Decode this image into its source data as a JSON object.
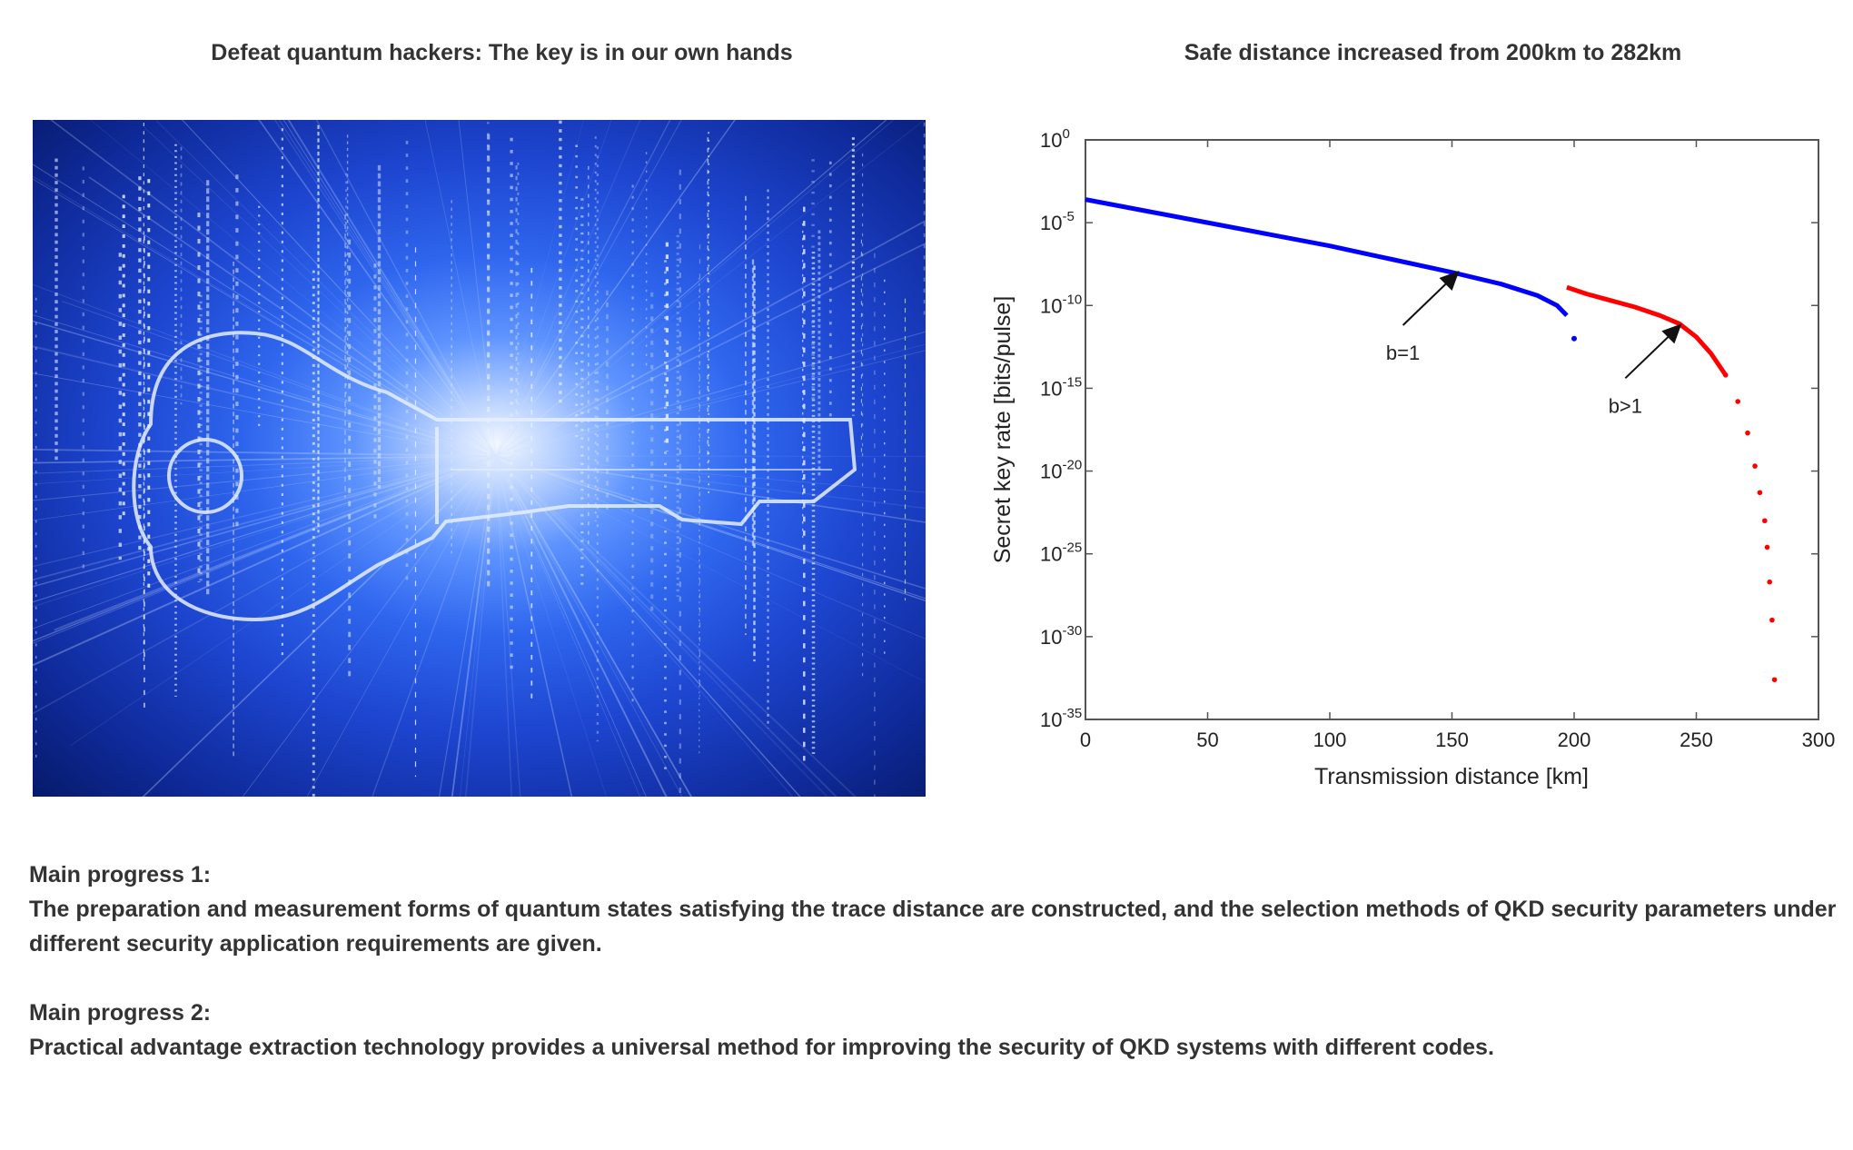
{
  "captions": {
    "left": "Defeat quantum hackers: The key is in our own hands",
    "right": "Safe distance increased from 200km to 282km"
  },
  "image": {
    "icon": "key-icon",
    "colors": {
      "background": "#1d45cf",
      "glow": "#f4f8ff",
      "outline": "#e6efff"
    }
  },
  "chart_data": {
    "type": "line",
    "title": "",
    "xlabel": "Transmission distance [km]",
    "ylabel": "Secret key rate [bits/pulse]",
    "xlim": [
      0,
      300
    ],
    "ylim_exponent": [
      -35,
      0
    ],
    "log_y": true,
    "x_ticks": [
      "0",
      "50",
      "100",
      "150",
      "200",
      "250",
      "300"
    ],
    "y_ticks": [
      {
        "base": "10",
        "exp": "0",
        "value": 0
      },
      {
        "base": "10",
        "exp": "-5",
        "value": -5
      },
      {
        "base": "10",
        "exp": "-10",
        "value": -10
      },
      {
        "base": "10",
        "exp": "-15",
        "value": -15
      },
      {
        "base": "10",
        "exp": "-20",
        "value": -20
      },
      {
        "base": "10",
        "exp": "-25",
        "value": -25
      },
      {
        "base": "10",
        "exp": "-30",
        "value": -30
      },
      {
        "base": "10",
        "exp": "-35",
        "value": -35
      }
    ],
    "grid": false,
    "series": [
      {
        "color": "#0000ff",
        "x": [
          0,
          25,
          50,
          75,
          100,
          125,
          150,
          170,
          185,
          193,
          197,
          200
        ],
        "y_log10": [
          -3.6,
          -4.3,
          -5.0,
          -5.7,
          -6.4,
          -7.2,
          -8.0,
          -8.7,
          -9.4,
          -10.0,
          -10.6,
          -12.0
        ]
      },
      {
        "color": "#ff0000",
        "x": [
          197,
          205,
          215,
          225,
          235,
          243,
          250,
          256,
          262,
          267,
          271,
          274,
          276,
          278,
          279,
          280,
          281,
          282
        ],
        "y_log10": [
          -8.9,
          -9.3,
          -9.7,
          -10.1,
          -10.6,
          -11.1,
          -11.9,
          -12.9,
          -14.2,
          -15.8,
          -17.7,
          -19.7,
          -21.3,
          -23.0,
          -24.6,
          -26.7,
          -29.0,
          -32.6
        ]
      }
    ],
    "annotations": [
      {
        "text": "b=1",
        "x": 153,
        "y_log10": -7.9
      },
      {
        "text": "b>1",
        "x": 244,
        "y_log10": -11.1
      }
    ]
  },
  "progress": [
    {
      "heading": "Main progress 1:",
      "text": "The preparation and measurement forms of quantum states satisfying the trace distance are constructed, and the selection methods of QKD security parameters under different security application requirements are given."
    },
    {
      "heading": "Main progress 2:",
      "text": "Practical advantage extraction technology provides a universal method for improving the security of QKD systems with different codes."
    }
  ]
}
